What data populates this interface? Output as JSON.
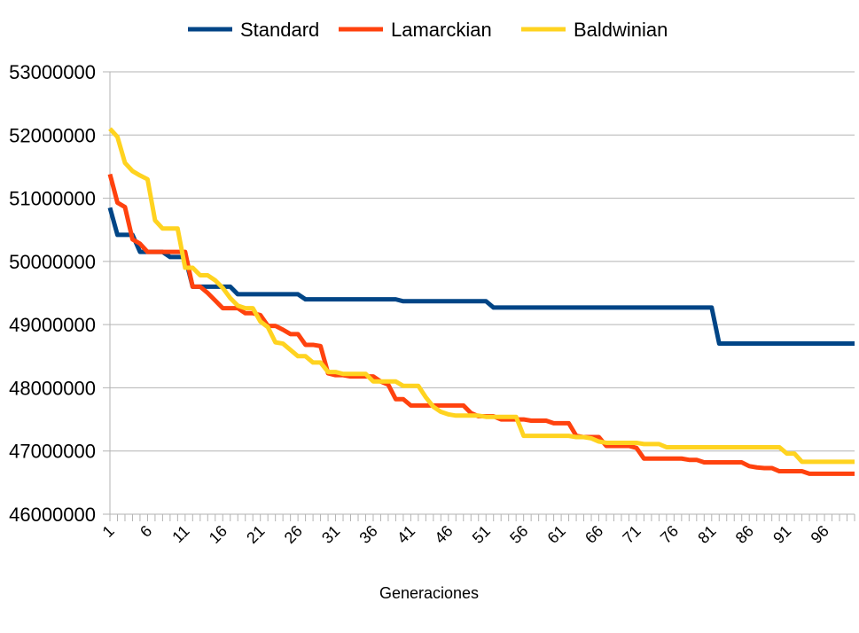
{
  "chart_data": {
    "type": "line",
    "title": "",
    "xlabel": "Generaciones",
    "ylabel": "",
    "x_range": [
      1,
      100
    ],
    "ylim": [
      46000000,
      53000000
    ],
    "y_ticks": [
      "46000000",
      "47000000",
      "48000000",
      "49000000",
      "50000000",
      "51000000",
      "52000000",
      "53000000"
    ],
    "x_ticks": [
      "1",
      "6",
      "11",
      "16",
      "21",
      "26",
      "31",
      "36",
      "41",
      "46",
      "51",
      "56",
      "61",
      "66",
      "71",
      "76",
      "81",
      "86",
      "91",
      "96"
    ],
    "grid": "horizontal",
    "legend": "top",
    "series": [
      {
        "name": "Standard",
        "color": "#004586",
        "points": [
          [
            1,
            50850000
          ],
          [
            2,
            50420000
          ],
          [
            3,
            50420000
          ],
          [
            4,
            50420000
          ],
          [
            5,
            50150000
          ],
          [
            6,
            50150000
          ],
          [
            7,
            50150000
          ],
          [
            8,
            50150000
          ],
          [
            9,
            50070000
          ],
          [
            10,
            50070000
          ],
          [
            11,
            50070000
          ],
          [
            12,
            49600000
          ],
          [
            13,
            49600000
          ],
          [
            14,
            49600000
          ],
          [
            15,
            49600000
          ],
          [
            16,
            49600000
          ],
          [
            17,
            49600000
          ],
          [
            18,
            49480000
          ],
          [
            19,
            49480000
          ],
          [
            20,
            49480000
          ],
          [
            21,
            49480000
          ],
          [
            22,
            49480000
          ],
          [
            23,
            49480000
          ],
          [
            24,
            49480000
          ],
          [
            25,
            49480000
          ],
          [
            26,
            49480000
          ],
          [
            27,
            49400000
          ],
          [
            28,
            49400000
          ],
          [
            29,
            49400000
          ],
          [
            30,
            49400000
          ],
          [
            31,
            49400000
          ],
          [
            32,
            49400000
          ],
          [
            33,
            49400000
          ],
          [
            34,
            49400000
          ],
          [
            35,
            49400000
          ],
          [
            36,
            49400000
          ],
          [
            37,
            49400000
          ],
          [
            38,
            49400000
          ],
          [
            39,
            49400000
          ],
          [
            40,
            49370000
          ],
          [
            41,
            49370000
          ],
          [
            42,
            49370000
          ],
          [
            43,
            49370000
          ],
          [
            44,
            49370000
          ],
          [
            45,
            49370000
          ],
          [
            46,
            49370000
          ],
          [
            47,
            49370000
          ],
          [
            48,
            49370000
          ],
          [
            49,
            49370000
          ],
          [
            50,
            49370000
          ],
          [
            51,
            49370000
          ],
          [
            52,
            49270000
          ],
          [
            53,
            49270000
          ],
          [
            54,
            49270000
          ],
          [
            55,
            49270000
          ],
          [
            56,
            49270000
          ],
          [
            57,
            49270000
          ],
          [
            58,
            49270000
          ],
          [
            59,
            49270000
          ],
          [
            60,
            49270000
          ],
          [
            61,
            49270000
          ],
          [
            62,
            49270000
          ],
          [
            63,
            49270000
          ],
          [
            64,
            49270000
          ],
          [
            65,
            49270000
          ],
          [
            66,
            49270000
          ],
          [
            67,
            49270000
          ],
          [
            68,
            49270000
          ],
          [
            69,
            49270000
          ],
          [
            70,
            49270000
          ],
          [
            71,
            49270000
          ],
          [
            72,
            49270000
          ],
          [
            73,
            49270000
          ],
          [
            74,
            49270000
          ],
          [
            75,
            49270000
          ],
          [
            76,
            49270000
          ],
          [
            77,
            49270000
          ],
          [
            78,
            49270000
          ],
          [
            79,
            49270000
          ],
          [
            80,
            49270000
          ],
          [
            81,
            49270000
          ],
          [
            82,
            48700000
          ],
          [
            83,
            48700000
          ],
          [
            84,
            48700000
          ],
          [
            85,
            48700000
          ],
          [
            86,
            48700000
          ],
          [
            87,
            48700000
          ],
          [
            88,
            48700000
          ],
          [
            89,
            48700000
          ],
          [
            90,
            48700000
          ],
          [
            91,
            48700000
          ],
          [
            92,
            48700000
          ],
          [
            93,
            48700000
          ],
          [
            94,
            48700000
          ],
          [
            95,
            48700000
          ],
          [
            96,
            48700000
          ],
          [
            97,
            48700000
          ],
          [
            98,
            48700000
          ],
          [
            99,
            48700000
          ],
          [
            100,
            48700000
          ]
        ]
      },
      {
        "name": "Lamarckian",
        "color": "#ff420e",
        "points": [
          [
            1,
            51380000
          ],
          [
            2,
            50930000
          ],
          [
            3,
            50860000
          ],
          [
            4,
            50350000
          ],
          [
            5,
            50280000
          ],
          [
            6,
            50150000
          ],
          [
            7,
            50150000
          ],
          [
            8,
            50150000
          ],
          [
            9,
            50150000
          ],
          [
            10,
            50150000
          ],
          [
            11,
            50150000
          ],
          [
            12,
            49600000
          ],
          [
            13,
            49600000
          ],
          [
            14,
            49500000
          ],
          [
            15,
            49380000
          ],
          [
            16,
            49260000
          ],
          [
            17,
            49260000
          ],
          [
            18,
            49260000
          ],
          [
            19,
            49180000
          ],
          [
            20,
            49180000
          ],
          [
            21,
            49150000
          ],
          [
            22,
            48980000
          ],
          [
            23,
            48980000
          ],
          [
            24,
            48920000
          ],
          [
            25,
            48850000
          ],
          [
            26,
            48850000
          ],
          [
            27,
            48680000
          ],
          [
            28,
            48680000
          ],
          [
            29,
            48660000
          ],
          [
            30,
            48230000
          ],
          [
            31,
            48200000
          ],
          [
            32,
            48200000
          ],
          [
            33,
            48180000
          ],
          [
            34,
            48180000
          ],
          [
            35,
            48180000
          ],
          [
            36,
            48180000
          ],
          [
            37,
            48100000
          ],
          [
            38,
            48050000
          ],
          [
            39,
            47820000
          ],
          [
            40,
            47820000
          ],
          [
            41,
            47720000
          ],
          [
            42,
            47720000
          ],
          [
            43,
            47720000
          ],
          [
            44,
            47720000
          ],
          [
            45,
            47720000
          ],
          [
            46,
            47720000
          ],
          [
            47,
            47720000
          ],
          [
            48,
            47720000
          ],
          [
            49,
            47600000
          ],
          [
            50,
            47550000
          ],
          [
            51,
            47550000
          ],
          [
            52,
            47550000
          ],
          [
            53,
            47500000
          ],
          [
            54,
            47500000
          ],
          [
            55,
            47500000
          ],
          [
            56,
            47500000
          ],
          [
            57,
            47480000
          ],
          [
            58,
            47480000
          ],
          [
            59,
            47480000
          ],
          [
            60,
            47440000
          ],
          [
            61,
            47440000
          ],
          [
            62,
            47440000
          ],
          [
            63,
            47240000
          ],
          [
            64,
            47220000
          ],
          [
            65,
            47220000
          ],
          [
            66,
            47220000
          ],
          [
            67,
            47080000
          ],
          [
            68,
            47080000
          ],
          [
            69,
            47080000
          ],
          [
            70,
            47080000
          ],
          [
            71,
            47050000
          ],
          [
            72,
            46880000
          ],
          [
            73,
            46880000
          ],
          [
            74,
            46880000
          ],
          [
            75,
            46880000
          ],
          [
            76,
            46880000
          ],
          [
            77,
            46880000
          ],
          [
            78,
            46860000
          ],
          [
            79,
            46860000
          ],
          [
            80,
            46820000
          ],
          [
            81,
            46820000
          ],
          [
            82,
            46820000
          ],
          [
            83,
            46820000
          ],
          [
            84,
            46820000
          ],
          [
            85,
            46820000
          ],
          [
            86,
            46760000
          ],
          [
            87,
            46740000
          ],
          [
            88,
            46730000
          ],
          [
            89,
            46730000
          ],
          [
            90,
            46680000
          ],
          [
            91,
            46680000
          ],
          [
            92,
            46680000
          ],
          [
            93,
            46680000
          ],
          [
            94,
            46640000
          ],
          [
            95,
            46640000
          ],
          [
            96,
            46640000
          ],
          [
            97,
            46640000
          ],
          [
            98,
            46640000
          ],
          [
            99,
            46640000
          ],
          [
            100,
            46640000
          ]
        ]
      },
      {
        "name": "Baldwinian",
        "color": "#ffd320",
        "points": [
          [
            1,
            52100000
          ],
          [
            2,
            51970000
          ],
          [
            3,
            51560000
          ],
          [
            4,
            51430000
          ],
          [
            5,
            51360000
          ],
          [
            6,
            51300000
          ],
          [
            7,
            50650000
          ],
          [
            8,
            50520000
          ],
          [
            9,
            50520000
          ],
          [
            10,
            50520000
          ],
          [
            11,
            49900000
          ],
          [
            12,
            49900000
          ],
          [
            13,
            49780000
          ],
          [
            14,
            49780000
          ],
          [
            15,
            49700000
          ],
          [
            16,
            49580000
          ],
          [
            17,
            49420000
          ],
          [
            18,
            49300000
          ],
          [
            19,
            49260000
          ],
          [
            20,
            49260000
          ],
          [
            21,
            49050000
          ],
          [
            22,
            48960000
          ],
          [
            23,
            48720000
          ],
          [
            24,
            48700000
          ],
          [
            25,
            48600000
          ],
          [
            26,
            48500000
          ],
          [
            27,
            48500000
          ],
          [
            28,
            48400000
          ],
          [
            29,
            48400000
          ],
          [
            30,
            48250000
          ],
          [
            31,
            48250000
          ],
          [
            32,
            48220000
          ],
          [
            33,
            48220000
          ],
          [
            34,
            48220000
          ],
          [
            35,
            48220000
          ],
          [
            36,
            48100000
          ],
          [
            37,
            48100000
          ],
          [
            38,
            48100000
          ],
          [
            39,
            48100000
          ],
          [
            40,
            48030000
          ],
          [
            41,
            48030000
          ],
          [
            42,
            48030000
          ],
          [
            43,
            47850000
          ],
          [
            44,
            47700000
          ],
          [
            45,
            47620000
          ],
          [
            46,
            47580000
          ],
          [
            47,
            47560000
          ],
          [
            48,
            47560000
          ],
          [
            49,
            47560000
          ],
          [
            50,
            47560000
          ],
          [
            51,
            47540000
          ],
          [
            52,
            47540000
          ],
          [
            53,
            47540000
          ],
          [
            54,
            47540000
          ],
          [
            55,
            47540000
          ],
          [
            56,
            47240000
          ],
          [
            57,
            47240000
          ],
          [
            58,
            47240000
          ],
          [
            59,
            47240000
          ],
          [
            60,
            47240000
          ],
          [
            61,
            47240000
          ],
          [
            62,
            47240000
          ],
          [
            63,
            47220000
          ],
          [
            64,
            47220000
          ],
          [
            65,
            47200000
          ],
          [
            66,
            47150000
          ],
          [
            67,
            47130000
          ],
          [
            68,
            47130000
          ],
          [
            69,
            47130000
          ],
          [
            70,
            47130000
          ],
          [
            71,
            47130000
          ],
          [
            72,
            47110000
          ],
          [
            73,
            47110000
          ],
          [
            74,
            47110000
          ],
          [
            75,
            47060000
          ],
          [
            76,
            47060000
          ],
          [
            77,
            47060000
          ],
          [
            78,
            47060000
          ],
          [
            79,
            47060000
          ],
          [
            80,
            47060000
          ],
          [
            81,
            47060000
          ],
          [
            82,
            47060000
          ],
          [
            83,
            47060000
          ],
          [
            84,
            47060000
          ],
          [
            85,
            47060000
          ],
          [
            86,
            47060000
          ],
          [
            87,
            47060000
          ],
          [
            88,
            47060000
          ],
          [
            89,
            47060000
          ],
          [
            90,
            47060000
          ],
          [
            91,
            46960000
          ],
          [
            92,
            46960000
          ],
          [
            93,
            46830000
          ],
          [
            94,
            46830000
          ],
          [
            95,
            46830000
          ],
          [
            96,
            46830000
          ],
          [
            97,
            46830000
          ],
          [
            98,
            46830000
          ],
          [
            99,
            46830000
          ],
          [
            100,
            46830000
          ]
        ]
      }
    ]
  }
}
